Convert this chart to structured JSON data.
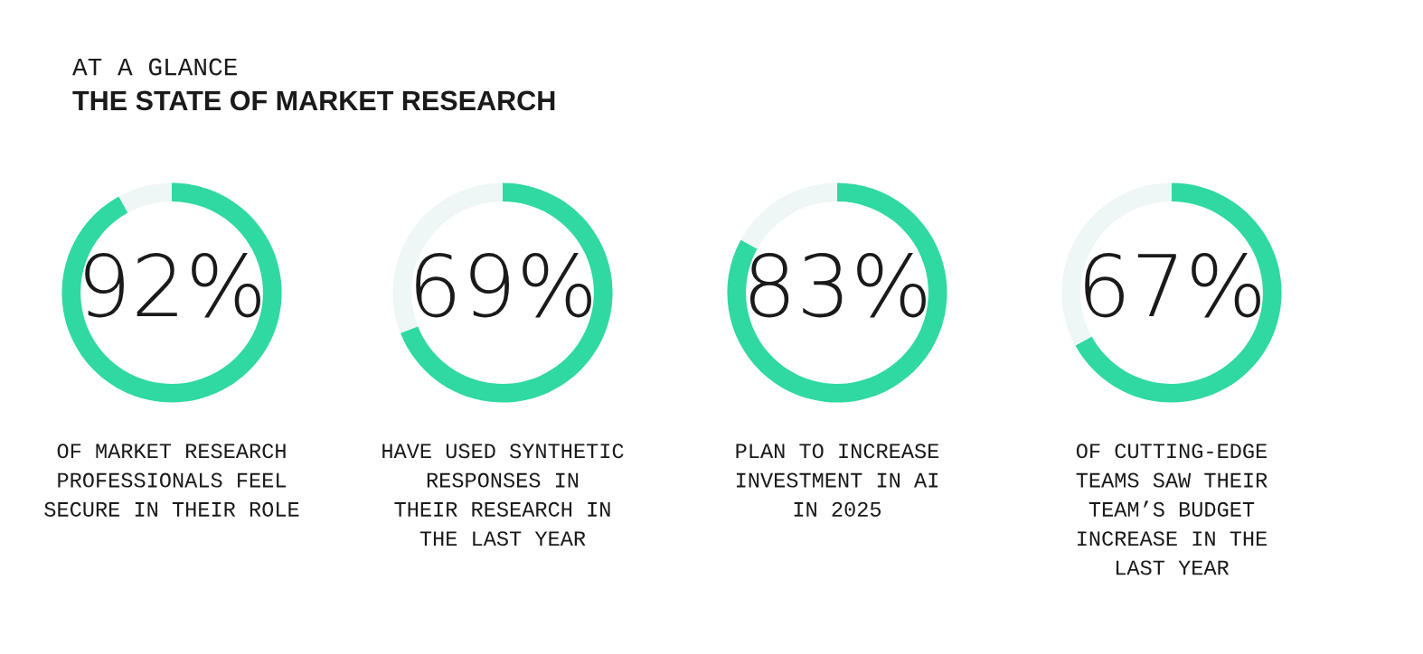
{
  "chart_data": [
    {
      "type": "donut",
      "title": "AT A GLANCE",
      "subtitle": "THE STATE OF MARKET RESEARCH",
      "categories": [
        null,
        null
      ],
      "values": [
        92,
        8
      ],
      "colors": [
        "#2fd9a1",
        "#eef6f6"
      ],
      "value_labels": [
        "92%",
        null
      ],
      "annotations": [
        "OF MARKET RESEARCH\nPROFESSIONALS FEEL\nSECURE IN THEIR ROLE"
      ]
    },
    {
      "type": "donut",
      "categories": [
        null,
        null
      ],
      "values": [
        69,
        31
      ],
      "colors": [
        "#2fd9a1",
        "#eef6f6"
      ],
      "value_labels": [
        "69%",
        null
      ],
      "annotations": [
        "HAVE USED SYNTHETIC\nRESPONSES IN\nTHEIR RESEARCH IN\nTHE LAST YEAR"
      ]
    },
    {
      "type": "donut",
      "categories": [
        null,
        null
      ],
      "values": [
        83,
        17
      ],
      "colors": [
        "#2fd9a1",
        "#eef6f6"
      ],
      "value_labels": [
        "83%",
        null
      ],
      "annotations": [
        "PLAN TO INCREASE\nINVESTMENT IN AI\nIN 2025"
      ]
    },
    {
      "type": "donut",
      "categories": [
        null,
        null
      ],
      "values": [
        67,
        33
      ],
      "colors": [
        "#2fd9a1",
        "#eef6f6"
      ],
      "value_labels": [
        "67%",
        null
      ],
      "annotations": [
        "OF CUTTING-EDGE\nTEAMS SAW THEIR\nTEAM’S BUDGET\nINCREASE IN THE\nLAST YEAR"
      ]
    }
  ]
}
